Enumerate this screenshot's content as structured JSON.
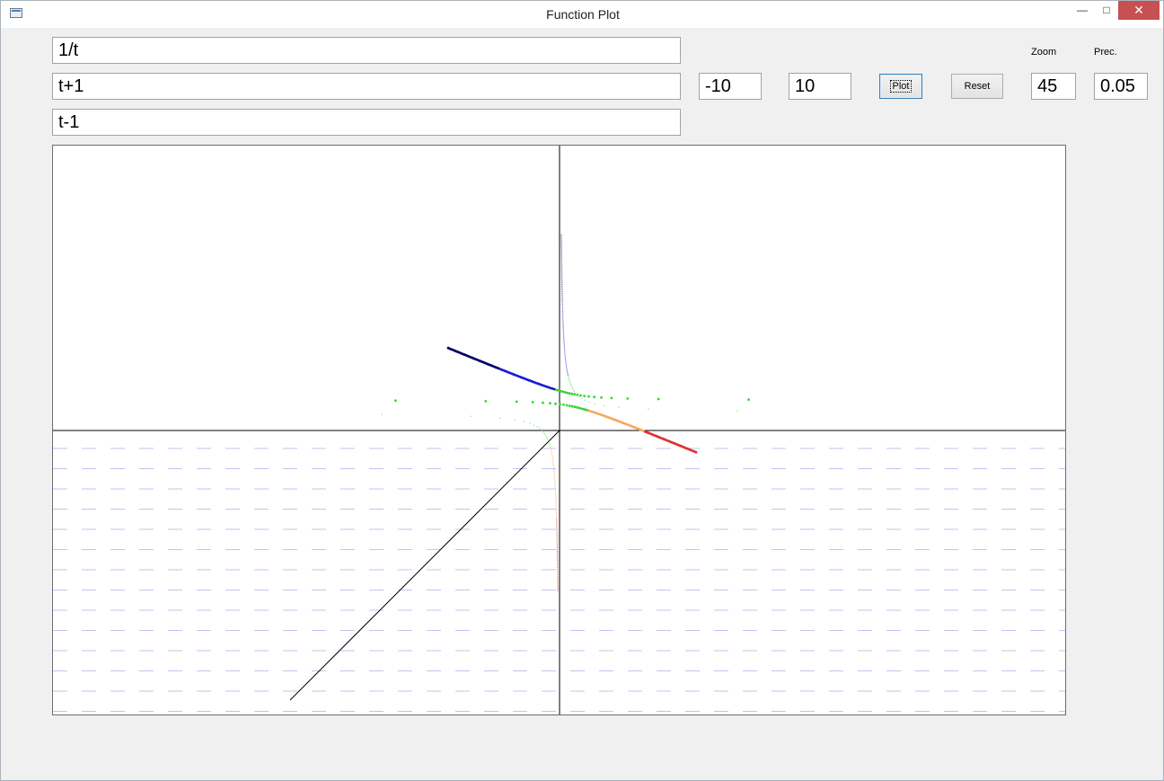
{
  "window": {
    "title": "Function Plot",
    "minimize_glyph": "—",
    "maximize_glyph": "□",
    "close_glyph": "✕"
  },
  "inputs": {
    "f1": "1/t",
    "f2": "t+1",
    "f3": "t-1",
    "t_min": "-10",
    "t_max": "10",
    "zoom": "45",
    "precision": "0.05"
  },
  "labels": {
    "zoom": "Zoom",
    "precision": "Prec."
  },
  "buttons": {
    "plot": "Plot",
    "reset": "Reset"
  },
  "colors": {
    "axis": "#000000",
    "grid_dash": "#c3c3f0",
    "red": "#e03030",
    "orange": "#f5a862",
    "green": "#33d633",
    "dark_green": "#0b5e0b",
    "blue": "#1a1ad6",
    "navy": "#000066"
  },
  "chart_data": {
    "type": "scatter",
    "parametric_functions": [
      "1/t",
      "t+1",
      "t-1"
    ],
    "t_range": [
      -10,
      10
    ],
    "zoom": 45,
    "precision": 0.05,
    "axes": {
      "origin_visible": true,
      "ticks": false,
      "labels": false
    }
  }
}
